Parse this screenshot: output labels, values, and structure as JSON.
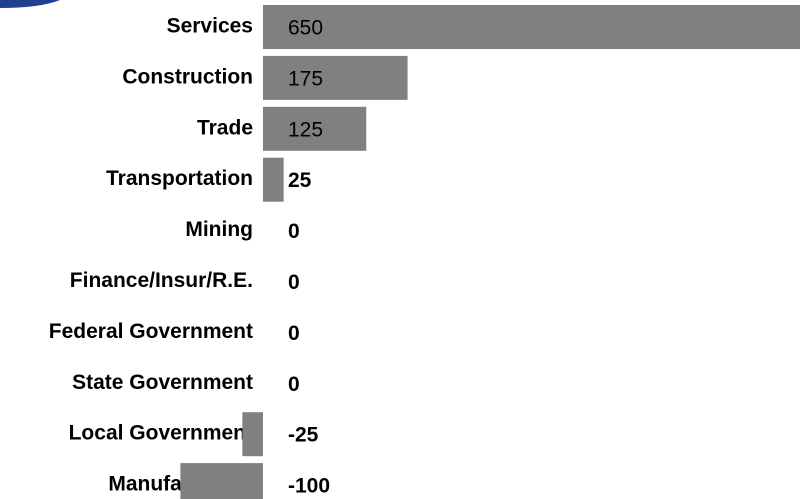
{
  "chart_data": {
    "type": "bar",
    "orientation": "horizontal",
    "categories": [
      "Services",
      "Construction",
      "Trade",
      "Transportation",
      "Mining",
      "Finance/Insur/R.E.",
      "Federal Government",
      "State Government",
      "Local Government",
      "Manufacturing"
    ],
    "values": [
      650,
      175,
      125,
      25,
      0,
      0,
      0,
      0,
      -25,
      -100
    ],
    "color": "#808080"
  }
}
